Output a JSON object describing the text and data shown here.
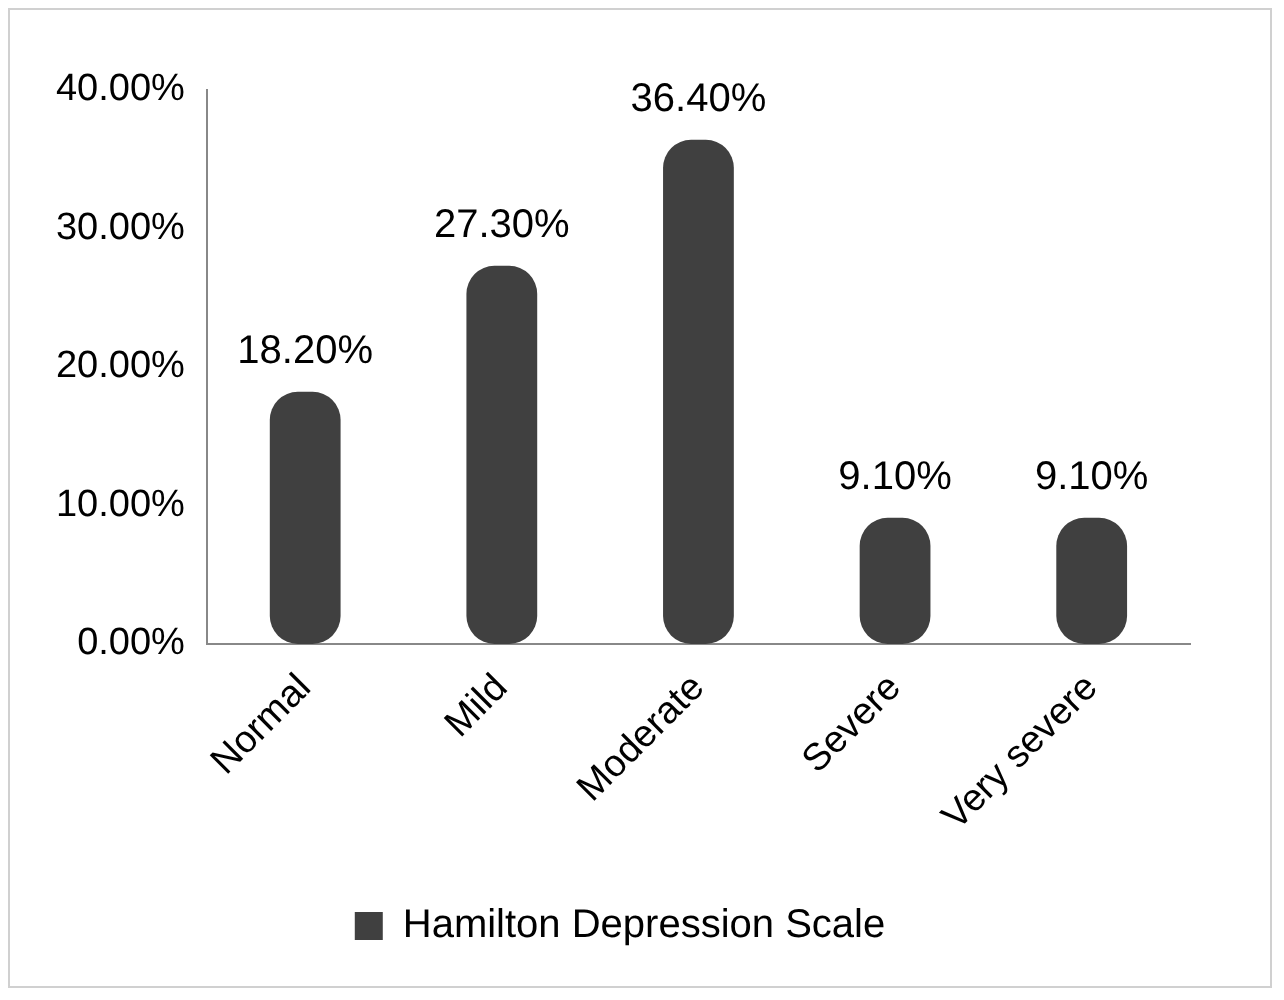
{
  "chart_data": {
    "type": "bar",
    "categories": [
      "Normal",
      "Mild",
      "Moderate",
      "Severe",
      "Very severe"
    ],
    "series": [
      {
        "name": "Hamilton Depression Scale",
        "color": "#404040",
        "values": [
          18.2,
          27.3,
          36.4,
          9.1,
          9.1
        ],
        "value_labels": [
          "18.20%",
          "27.30%",
          "36.40%",
          "9.10%",
          "9.10%"
        ]
      }
    ],
    "ylim": [
      0,
      40
    ],
    "yticks": [
      {
        "value": 0,
        "label": "0.00%"
      },
      {
        "value": 10,
        "label": "10.00%"
      },
      {
        "value": 20,
        "label": "20.00%"
      },
      {
        "value": 30,
        "label": "30.00%"
      },
      {
        "value": 40,
        "label": "40.00%"
      }
    ],
    "grid": false,
    "legend": "bottom"
  }
}
